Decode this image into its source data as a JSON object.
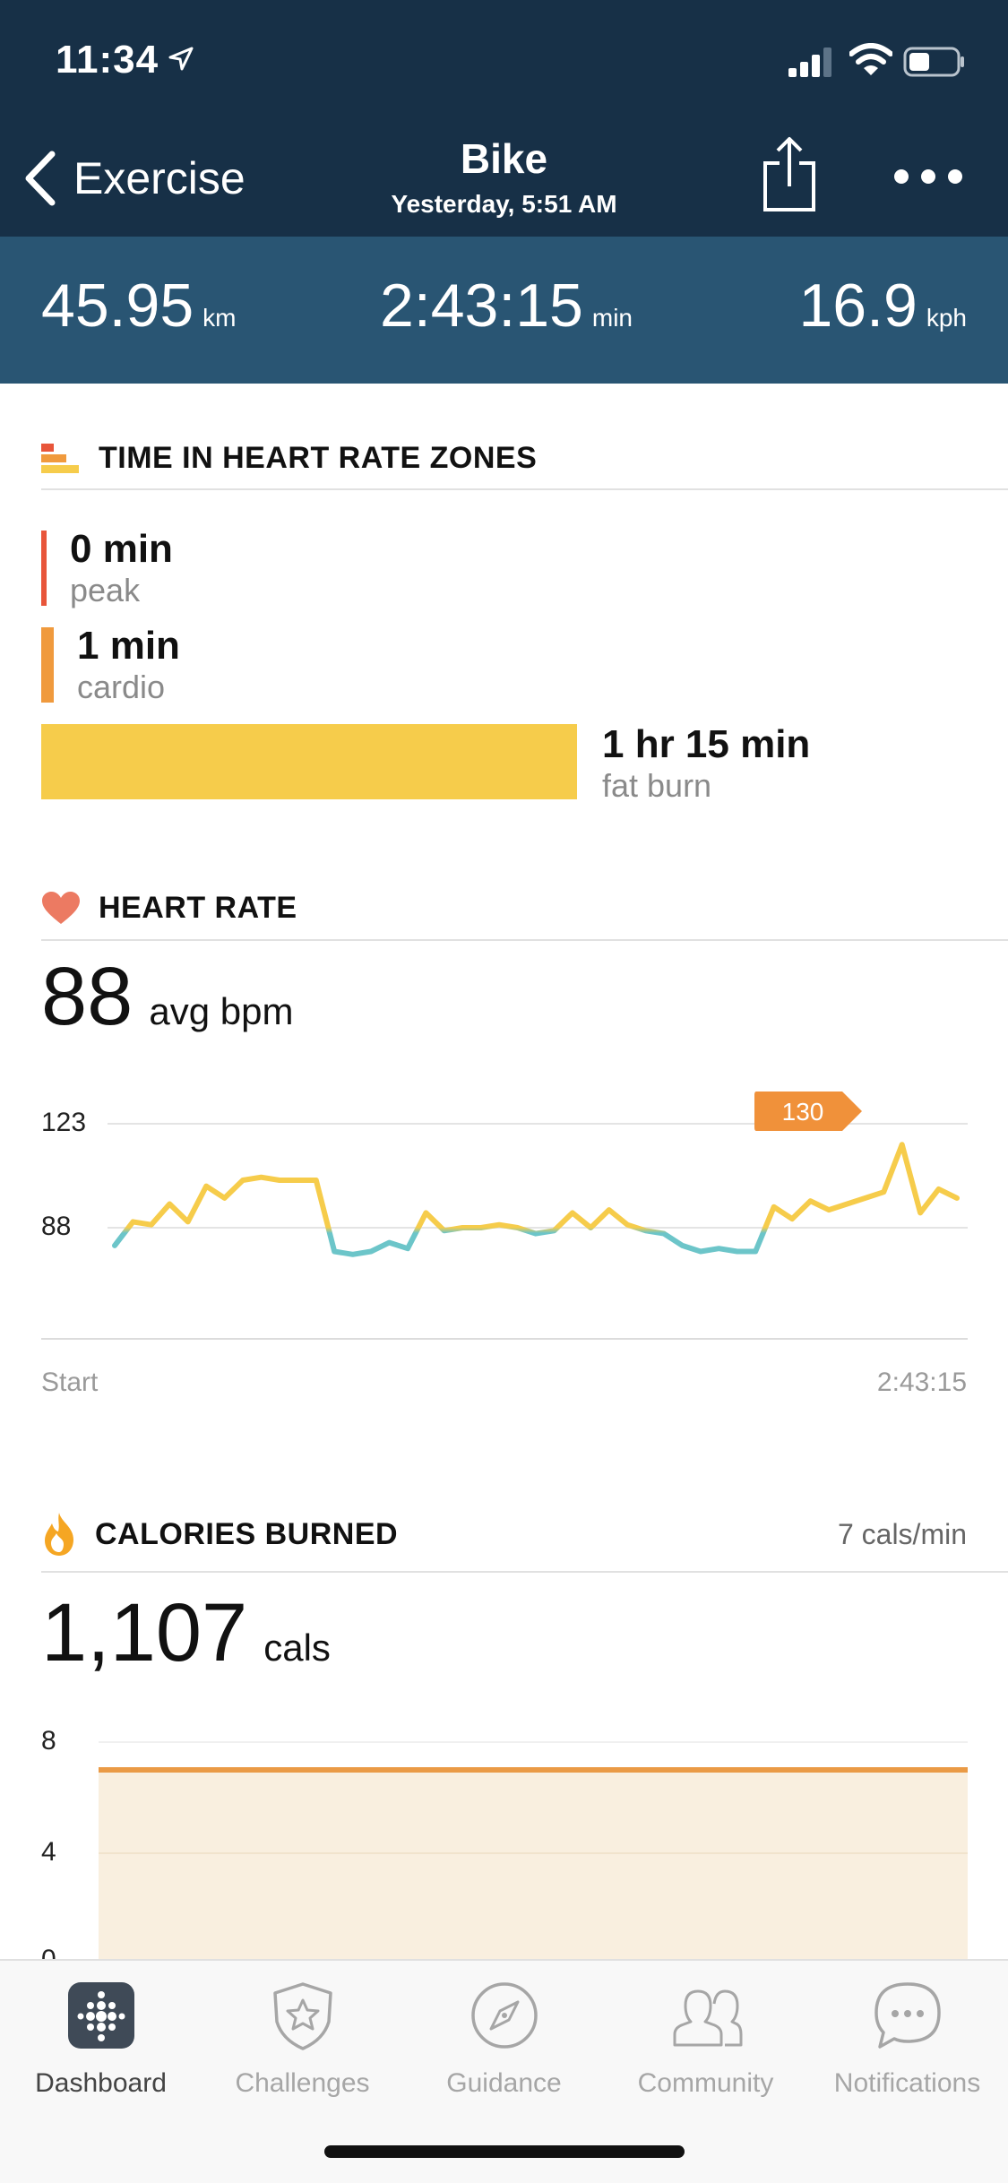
{
  "status": {
    "time": "11:34"
  },
  "nav": {
    "back_label": "Exercise",
    "title": "Bike",
    "subtitle": "Yesterday, 5:51 AM"
  },
  "stats": [
    {
      "value": "45.95",
      "unit": "km"
    },
    {
      "value": "2:43:15",
      "unit": "min"
    },
    {
      "value": "16.9",
      "unit": "kph"
    }
  ],
  "zones": {
    "title": "TIME IN HEART RATE ZONES",
    "items": [
      {
        "value": "0 min",
        "label": "peak",
        "color": "#e8553a"
      },
      {
        "value": "1 min",
        "label": "cardio",
        "color": "#f09a3d"
      },
      {
        "value": "1 hr 15 min",
        "label": "fat burn",
        "color": "#f6cc4b"
      }
    ]
  },
  "heart_rate": {
    "title": "HEART RATE",
    "avg_value": "88",
    "avg_unit": "avg bpm",
    "y_ticks": [
      "123",
      "88"
    ],
    "peak_label": "130",
    "x_start": "Start",
    "x_end": "2:43:15"
  },
  "calories": {
    "title": "CALORIES BURNED",
    "rate": "7 cals/min",
    "value": "1,107",
    "unit": "cals",
    "y_ticks": [
      "8",
      "4",
      "0"
    ]
  },
  "tabs": [
    {
      "label": "Dashboard",
      "icon": "dashboard-icon"
    },
    {
      "label": "Challenges",
      "icon": "challenges-star-icon"
    },
    {
      "label": "Guidance",
      "icon": "compass-icon"
    },
    {
      "label": "Community",
      "icon": "community-icon"
    },
    {
      "label": "Notifications",
      "icon": "notifications-chat-icon"
    }
  ],
  "colors": {
    "header": "#173047",
    "stats_bar": "#295573",
    "fat_burn": "#f6cc4b",
    "below_zone": "#6cc5c9",
    "calories_line": "#ea9a45",
    "calories_fill": "#f9efdf"
  },
  "chart_data": [
    {
      "type": "line",
      "title": "HEART RATE",
      "ylabel": "",
      "xlabel": "",
      "y_ticks": [
        88,
        123
      ],
      "x_range": [
        "Start",
        "2:43:15"
      ],
      "peak": 130,
      "series": [
        {
          "values": [
            82,
            90,
            89,
            96,
            90,
            102,
            98,
            104,
            105,
            104,
            104,
            104,
            80,
            79,
            80,
            83,
            81,
            93,
            87,
            88,
            88,
            89,
            88,
            86,
            87,
            93,
            88,
            94,
            89,
            87,
            86,
            82,
            80,
            81,
            80,
            80,
            95,
            91,
            97,
            94,
            96,
            98,
            100,
            116,
            93,
            101,
            98
          ]
        }
      ]
    },
    {
      "type": "area",
      "title": "CALORIES BURNED",
      "y_ticks": [
        0,
        4,
        8
      ],
      "series": [
        {
          "values": [
            7,
            7
          ]
        }
      ]
    }
  ]
}
